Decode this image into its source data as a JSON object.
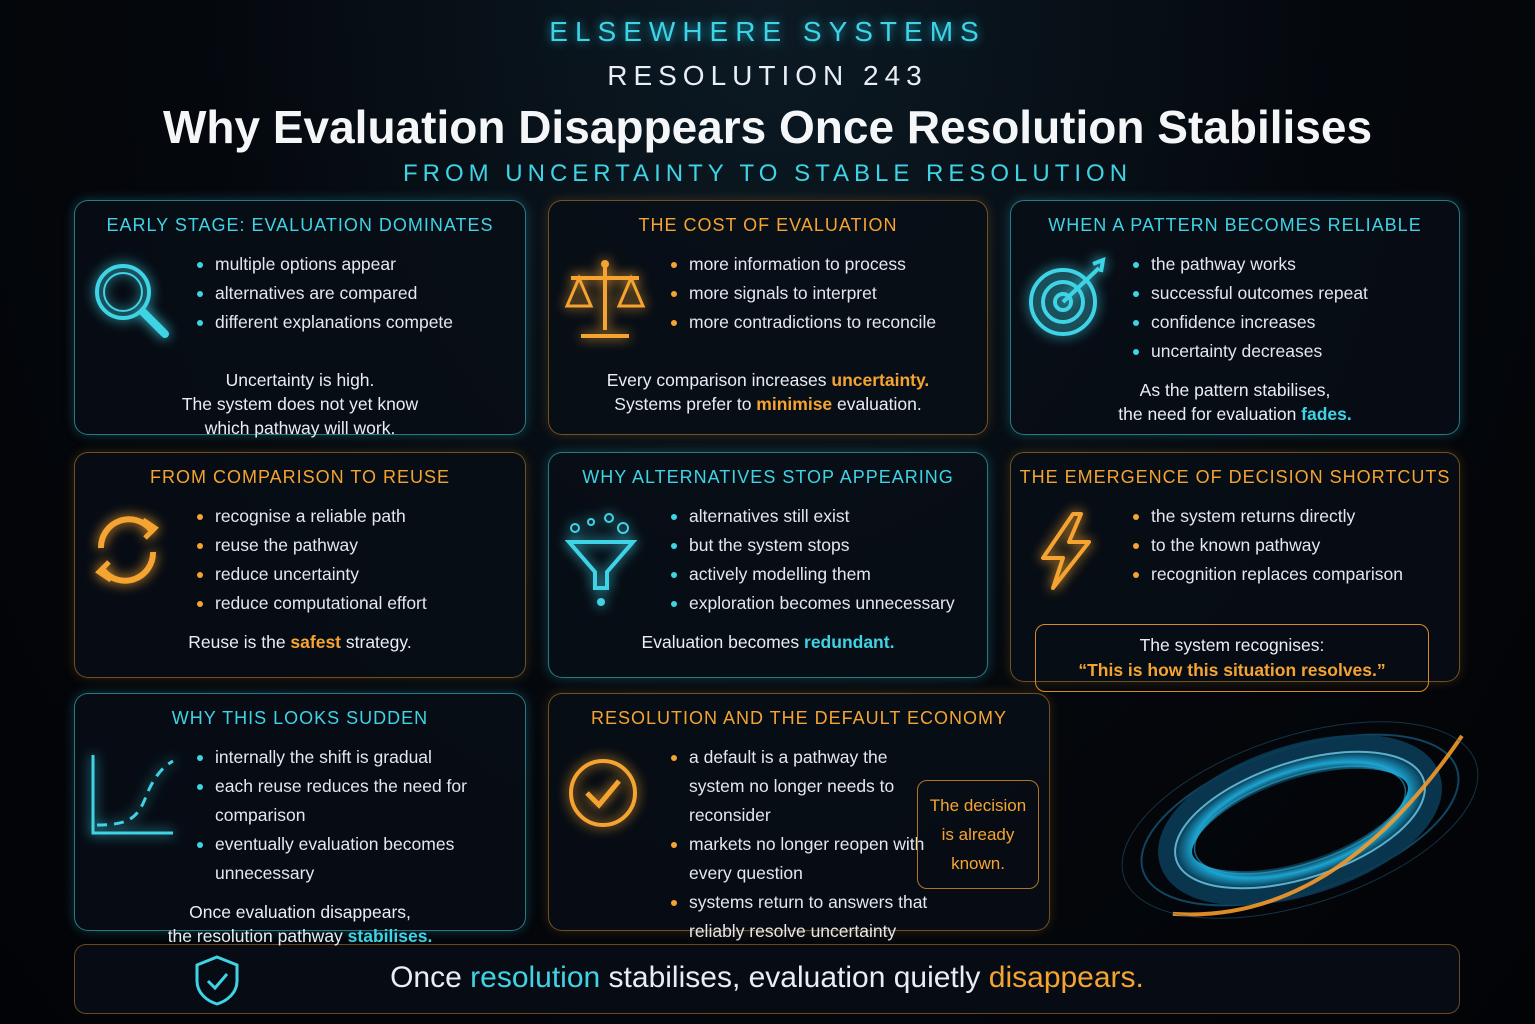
{
  "header": {
    "brand": "ELSEWHERE SYSTEMS",
    "resolution": "RESOLUTION 243",
    "title": "Why Evaluation Disappears Once Resolution Stabilises",
    "subtitle": "FROM UNCERTAINTY TO STABLE RESOLUTION"
  },
  "cards": [
    {
      "title": "EARLY STAGE: EVALUATION DOMINATES",
      "accent": "cyan",
      "bullets": [
        "multiple options appear",
        "alternatives are compared",
        "different explanations compete"
      ],
      "note": [
        [
          "Uncertainty is high."
        ],
        [
          "The system does not yet know"
        ],
        [
          "which pathway will work."
        ]
      ]
    },
    {
      "title": "THE COST OF EVALUATION",
      "accent": "orange",
      "bullets": [
        "more information to process",
        "more signals to interpret",
        "more contradictions to reconcile"
      ],
      "note": [
        [
          "Every comparison increases ",
          {
            "text": "uncertainty.",
            "color": "orange"
          }
        ],
        [
          "Systems prefer to ",
          {
            "text": "minimise",
            "color": "orange"
          },
          " evaluation."
        ]
      ]
    },
    {
      "title": "WHEN A PATTERN BECOMES RELIABLE",
      "accent": "cyan",
      "bullets": [
        "the pathway works",
        "successful outcomes repeat",
        "confidence increases",
        "uncertainty decreases"
      ],
      "note": [
        [
          "As the pattern stabilises,"
        ],
        [
          "the need for evaluation ",
          {
            "text": "fades.",
            "color": "cyan"
          }
        ]
      ]
    },
    {
      "title": "FROM COMPARISON TO REUSE",
      "accent": "orange",
      "bullets": [
        "recognise a reliable path",
        "reuse the pathway",
        "reduce uncertainty",
        "reduce computational effort"
      ],
      "note": [
        [
          "Reuse is the ",
          {
            "text": "safest",
            "color": "orange"
          },
          " strategy."
        ]
      ]
    },
    {
      "title": "WHY ALTERNATIVES STOP APPEARING",
      "accent": "cyan",
      "bullets": [
        "alternatives still exist",
        "but the system stops",
        "actively modelling them",
        "exploration becomes unnecessary"
      ],
      "note": [
        [
          "Evaluation becomes ",
          {
            "text": "redundant.",
            "color": "cyan"
          }
        ]
      ]
    },
    {
      "title": "THE EMERGENCE OF DECISION SHORTCUTS",
      "accent": "orange",
      "bullets": [
        "the system returns directly",
        "to the known pathway",
        "recognition replaces comparison"
      ],
      "quote": [
        [
          "The system recognises:"
        ],
        [
          {
            "text": "“This is how this situation resolves.”",
            "color": "orange"
          }
        ]
      ]
    },
    {
      "title": "WHY THIS LOOKS SUDDEN",
      "accent": "cyan",
      "bullets": [
        "internally the shift is gradual",
        "each reuse reduces the need for comparison",
        "eventually evaluation becomes unnecessary"
      ],
      "note": [
        [
          "Once evaluation disappears,"
        ],
        [
          "the resolution pathway ",
          {
            "text": "stabilises.",
            "color": "cyan"
          }
        ]
      ]
    },
    {
      "title": "RESOLUTION AND THE DEFAULT ECONOMY",
      "accent": "orange",
      "bullets": [
        "a default is a pathway the system no longer needs to reconsider",
        "markets no longer reopen with every question",
        "systems return to answers that reliably resolve uncertainty"
      ],
      "aside": [
        "The decision",
        "is already",
        "known."
      ]
    }
  ],
  "footer": [
    "Once ",
    {
      "text": "resolution",
      "color": "cyan"
    },
    " stabilises, evaluation quietly ",
    {
      "text": "disappears.",
      "color": "orange"
    }
  ]
}
